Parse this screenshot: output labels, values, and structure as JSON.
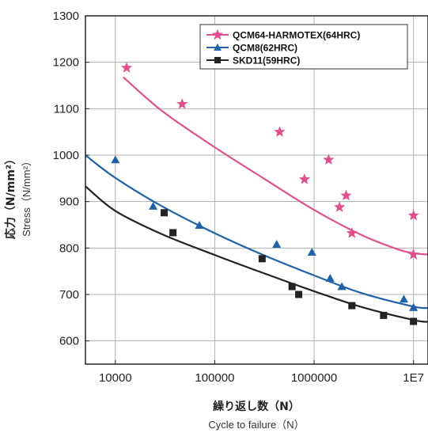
{
  "chart_data": {
    "type": "scatter",
    "title": "",
    "xscale": "log",
    "xlim": [
      5000,
      14000000
    ],
    "ylim": [
      550,
      1300
    ],
    "x_ticks": [
      10000,
      100000,
      1000000,
      10000000
    ],
    "x_tick_labels": [
      "10000",
      "100000",
      "1000000",
      "1E7"
    ],
    "y_ticks": [
      600,
      700,
      800,
      900,
      1000,
      1100,
      1200,
      1300
    ],
    "y_tick_labels": [
      "600",
      "700",
      "800",
      "900",
      "1000",
      "1100",
      "1200",
      "1300"
    ],
    "xlabel": "繰り返し数（N）",
    "xlabel_en": "Cycle to failure（N）",
    "ylabel": "応力（N/mm²）",
    "ylabel_en": "Stress（N/mm²）",
    "grid": true,
    "legend_position": "top-right",
    "series": [
      {
        "name": "QCM64-HARMOTEX(64HRC)",
        "color": "#e0508f",
        "marker": "star",
        "points": [
          {
            "x": 13000,
            "y": 1188
          },
          {
            "x": 47000,
            "y": 1110
          },
          {
            "x": 450000,
            "y": 1050
          },
          {
            "x": 800000,
            "y": 948
          },
          {
            "x": 1400000,
            "y": 990
          },
          {
            "x": 1800000,
            "y": 888
          },
          {
            "x": 2100000,
            "y": 913
          },
          {
            "x": 2400000,
            "y": 832
          },
          {
            "x": 10000000,
            "y": 870
          },
          {
            "x": 10000000,
            "y": 786
          }
        ],
        "fit": [
          {
            "x": 12000,
            "y": 1168
          },
          {
            "x": 30000,
            "y": 1094
          },
          {
            "x": 100000,
            "y": 1017
          },
          {
            "x": 300000,
            "y": 952
          },
          {
            "x": 1000000,
            "y": 882
          },
          {
            "x": 3000000,
            "y": 828
          },
          {
            "x": 7000000,
            "y": 797
          },
          {
            "x": 10000000,
            "y": 789
          },
          {
            "x": 14000000,
            "y": 786
          }
        ]
      },
      {
        "name": "QCM8(62HRC)",
        "color": "#1f62a8",
        "marker": "triangle",
        "points": [
          {
            "x": 10000,
            "y": 990
          },
          {
            "x": 24000,
            "y": 890
          },
          {
            "x": 70000,
            "y": 849
          },
          {
            "x": 420000,
            "y": 808
          },
          {
            "x": 950000,
            "y": 791
          },
          {
            "x": 1450000,
            "y": 735
          },
          {
            "x": 1900000,
            "y": 717
          },
          {
            "x": 8000000,
            "y": 690
          },
          {
            "x": 10000000,
            "y": 672
          }
        ],
        "fit": [
          {
            "x": 5000,
            "y": 1000
          },
          {
            "x": 10000,
            "y": 951
          },
          {
            "x": 30000,
            "y": 889
          },
          {
            "x": 100000,
            "y": 832
          },
          {
            "x": 300000,
            "y": 786
          },
          {
            "x": 1000000,
            "y": 741
          },
          {
            "x": 3000000,
            "y": 703
          },
          {
            "x": 10000000,
            "y": 674
          },
          {
            "x": 14000000,
            "y": 671
          }
        ]
      },
      {
        "name": "SKD11(59HRC)",
        "color": "#222222",
        "marker": "square",
        "points": [
          {
            "x": 31000,
            "y": 876
          },
          {
            "x": 38000,
            "y": 833
          },
          {
            "x": 300000,
            "y": 777
          },
          {
            "x": 600000,
            "y": 717
          },
          {
            "x": 700000,
            "y": 700
          },
          {
            "x": 2400000,
            "y": 676
          },
          {
            "x": 5000000,
            "y": 655
          },
          {
            "x": 10000000,
            "y": 642
          }
        ],
        "fit": [
          {
            "x": 5000,
            "y": 933
          },
          {
            "x": 10000,
            "y": 880
          },
          {
            "x": 30000,
            "y": 829
          },
          {
            "x": 100000,
            "y": 785
          },
          {
            "x": 300000,
            "y": 747
          },
          {
            "x": 1000000,
            "y": 707
          },
          {
            "x": 3000000,
            "y": 673
          },
          {
            "x": 10000000,
            "y": 645
          },
          {
            "x": 14000000,
            "y": 641
          }
        ]
      }
    ]
  }
}
